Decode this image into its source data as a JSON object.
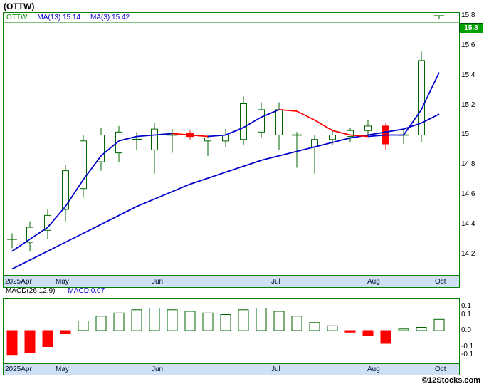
{
  "page": {
    "title": "(OTTW)",
    "watermark": "©12Stocks.com"
  },
  "colors": {
    "chart_border": "#008000",
    "axis_band_bg": "#cfe0f4",
    "axis_text": "#000000",
    "month_text": "#001133",
    "candle_up": "#006600",
    "candle_down": "#ff0000",
    "ma_blue": "#0000cc",
    "ma_red": "#ff0000",
    "legend_symbol": "#008800",
    "legend_value": "#0000cc",
    "price_box_bg": "#00a000",
    "price_box_text": "#ffffff",
    "macd_value": "#0000cc"
  },
  "price_chart": {
    "legend": {
      "symbol": "OTTW",
      "ma13": "MA(13)  15.14",
      "ma3": "MA(3)  15.42"
    },
    "last_price_label": "15.8",
    "y_ticks": [
      {
        "value": 15.8,
        "label": "15.8"
      },
      {
        "value": 15.6,
        "label": "15.6"
      },
      {
        "value": 15.4,
        "label": "15.4"
      },
      {
        "value": 15.2,
        "label": "15.2"
      },
      {
        "value": 15.0,
        "label": "15"
      },
      {
        "value": 14.8,
        "label": "14.8"
      },
      {
        "value": 14.6,
        "label": "14.6"
      },
      {
        "value": 14.4,
        "label": "14.4"
      },
      {
        "value": 14.2,
        "label": "14.2"
      }
    ],
    "x_labels": [
      {
        "label": "2025Apr",
        "week": 0
      },
      {
        "label": "May",
        "week": 3
      },
      {
        "label": "Jun",
        "week": 8.4
      },
      {
        "label": "Jul",
        "week": 15.1
      },
      {
        "label": "Aug",
        "week": 20.5
      },
      {
        "label": "Oct",
        "week": 24.3
      }
    ]
  },
  "macd_chart": {
    "indicator_label": "MACD(26,12,9)",
    "value_label": "MACD:0.07",
    "y_ticks": [
      {
        "value": 0.15,
        "label": "0.1"
      },
      {
        "value": 0.1,
        "label": "0.1"
      },
      {
        "value": 0.0,
        "label": "0.0"
      },
      {
        "value": -0.1,
        "label": "-0.1"
      },
      {
        "value": -0.15,
        "label": "-0.1"
      }
    ]
  },
  "chart_data": [
    {
      "type": "candlestick",
      "title": "(OTTW) weekly price",
      "timeframe": "weekly, 2025 Apr – Oct",
      "ylim": [
        14.06,
        15.82
      ],
      "y_tick_values": [
        15.8,
        15.6,
        15.4,
        15.2,
        15.0,
        14.8,
        14.6,
        14.4,
        14.2
      ],
      "ohlc_columns": [
        "open",
        "high",
        "low",
        "close"
      ],
      "candles": [
        [
          14.3,
          14.34,
          14.24,
          14.3
        ],
        [
          14.28,
          14.42,
          14.22,
          14.38
        ],
        [
          14.36,
          14.5,
          14.3,
          14.46
        ],
        [
          14.5,
          14.8,
          14.42,
          14.76
        ],
        [
          14.64,
          15.0,
          14.58,
          14.96
        ],
        [
          14.82,
          15.05,
          14.76,
          15.0
        ],
        [
          14.88,
          15.06,
          14.82,
          15.02
        ],
        [
          14.97,
          15.02,
          14.9,
          14.97
        ],
        [
          14.9,
          15.08,
          14.74,
          15.04
        ],
        [
          15.0,
          15.04,
          14.88,
          15.0
        ],
        [
          15.01,
          15.03,
          14.97,
          14.99
        ],
        [
          14.96,
          15.0,
          14.86,
          14.98
        ],
        [
          14.96,
          15.04,
          14.92,
          15.0
        ],
        [
          14.97,
          15.26,
          14.93,
          15.21
        ],
        [
          15.02,
          15.22,
          14.98,
          15.17
        ],
        [
          15.0,
          15.22,
          14.9,
          15.17
        ],
        [
          15.0,
          15.02,
          14.78,
          15.0
        ],
        [
          14.92,
          15.0,
          14.74,
          14.97
        ],
        [
          14.97,
          15.03,
          14.93,
          15.0
        ],
        [
          14.99,
          15.05,
          14.95,
          15.03
        ],
        [
          15.03,
          15.1,
          14.99,
          15.06
        ],
        [
          15.06,
          15.08,
          14.9,
          14.94
        ],
        [
          15.0,
          15.03,
          14.94,
          15.0
        ],
        [
          15.0,
          15.56,
          14.95,
          15.5
        ],
        [
          15.8,
          15.8,
          15.78,
          15.8
        ]
      ],
      "series": [
        {
          "name": "MA(3)",
          "last": 15.42,
          "color_rule": "blue when rising, red when falling",
          "values": [
            14.22,
            14.3,
            14.38,
            14.52,
            14.7,
            14.86,
            14.96,
            14.99,
            15.0,
            15.01,
            15.0,
            14.99,
            15.0,
            15.05,
            15.12,
            15.17,
            15.16,
            15.1,
            15.03,
            15.0,
            14.99,
            15.0,
            15.0,
            15.17,
            15.42
          ]
        },
        {
          "name": "MA(13)",
          "last": 15.14,
          "color_rule": "blue",
          "values": [
            14.1,
            14.16,
            14.22,
            14.28,
            14.34,
            14.4,
            14.46,
            14.52,
            14.57,
            14.62,
            14.67,
            14.71,
            14.75,
            14.79,
            14.83,
            14.86,
            14.89,
            14.92,
            14.95,
            14.98,
            15.0,
            15.02,
            15.04,
            15.08,
            15.14
          ]
        }
      ],
      "last_price": 15.8
    },
    {
      "type": "bar",
      "title": "MACD(26,12,9)",
      "last": 0.07,
      "ylim": [
        -0.2,
        0.2
      ],
      "y_tick_values": [
        0.15,
        0.1,
        0.0,
        -0.1,
        -0.15
      ],
      "values": [
        -0.15,
        -0.14,
        -0.1,
        -0.02,
        0.06,
        0.09,
        0.11,
        0.13,
        0.14,
        0.13,
        0.12,
        0.11,
        0.1,
        0.13,
        0.14,
        0.12,
        0.09,
        0.05,
        0.03,
        -0.01,
        -0.03,
        -0.08,
        0.01,
        0.02,
        0.07
      ]
    }
  ]
}
